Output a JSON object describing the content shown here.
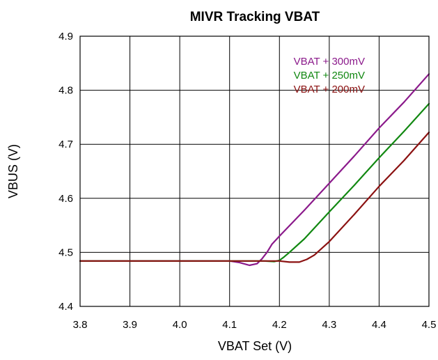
{
  "chart_data": {
    "type": "line",
    "title": "MIVR  Tracking VBAT",
    "xlabel": "VBAT Set (V)",
    "ylabel": "VBUS (V)",
    "xlim": [
      3.8,
      4.5
    ],
    "ylim": [
      4.4,
      4.9
    ],
    "xticks": [
      3.8,
      3.9,
      4.0,
      4.1,
      4.2,
      4.3,
      4.4,
      4.5
    ],
    "yticks": [
      4.4,
      4.5,
      4.6,
      4.7,
      4.8,
      4.9
    ],
    "xtick_labels": [
      "3.8",
      "3.9",
      "4.0",
      "4.1",
      "4.2",
      "4.3",
      "4.4",
      "4.5"
    ],
    "ytick_labels": [
      "4.4",
      "4.5",
      "4.6",
      "4.7",
      "4.8",
      "4.9"
    ],
    "grid": true,
    "legend_position": "top-right",
    "series": [
      {
        "name": "VBAT + 300mV",
        "color": "#8B1A8B",
        "x": [
          3.8,
          4.1,
          4.12,
          4.14,
          4.155,
          4.165,
          4.175,
          4.185,
          4.2,
          4.25,
          4.3,
          4.35,
          4.4,
          4.45,
          4.5
        ],
        "y": [
          4.484,
          4.484,
          4.481,
          4.476,
          4.479,
          4.488,
          4.5,
          4.515,
          4.53,
          4.578,
          4.628,
          4.678,
          4.73,
          4.778,
          4.83
        ]
      },
      {
        "name": "VBAT + 250mV",
        "color": "#118811",
        "x": [
          3.8,
          4.17,
          4.19,
          4.2,
          4.21,
          4.22,
          4.25,
          4.3,
          4.35,
          4.4,
          4.45,
          4.5
        ],
        "y": [
          4.484,
          4.484,
          4.483,
          4.485,
          4.492,
          4.5,
          4.525,
          4.575,
          4.624,
          4.675,
          4.724,
          4.775
        ]
      },
      {
        "name": "VBAT + 200mV",
        "color": "#8B1111",
        "x": [
          3.8,
          4.2,
          4.22,
          4.24,
          4.255,
          4.27,
          4.3,
          4.35,
          4.4,
          4.45,
          4.5
        ],
        "y": [
          4.484,
          4.484,
          4.482,
          4.482,
          4.487,
          4.495,
          4.52,
          4.57,
          4.622,
          4.67,
          4.722
        ]
      }
    ]
  }
}
